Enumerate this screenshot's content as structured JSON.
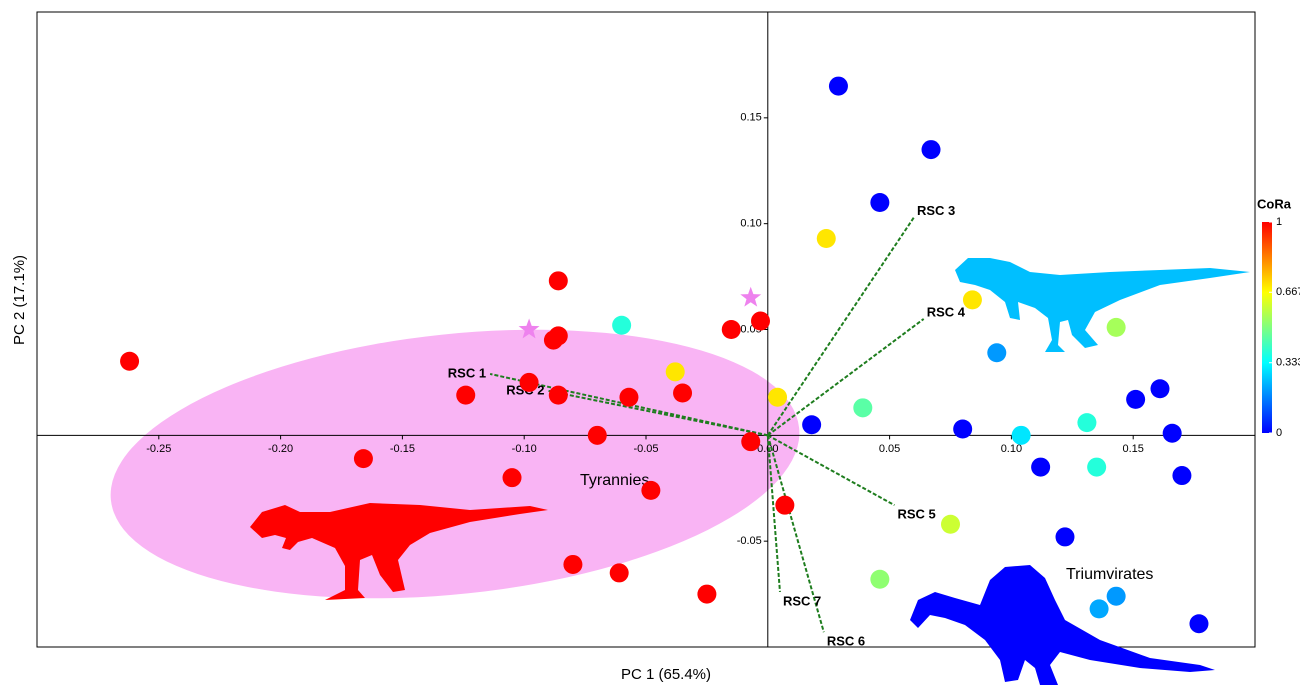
{
  "chart_data": {
    "type": "scatter",
    "x_label": "PC 1 (65.4%)",
    "y_label": "PC 2 (17.1%)",
    "xlim": [
      -0.3,
      0.2
    ],
    "ylim": [
      -0.1,
      0.2
    ],
    "xticks": [
      -0.25,
      {
        "value": -0.2,
        "label": "-0.20"
      },
      -0.15,
      {
        "value": -0.1,
        "label": "-0.10"
      },
      -0.05,
      {
        "value": 0,
        "label": "0.00"
      },
      0.05,
      {
        "value": 0.1,
        "label": "0.10"
      },
      0.15
    ],
    "yticks": [
      -0.05,
      0.05,
      {
        "value": 0.1,
        "label": "0.10"
      },
      0.15
    ],
    "points": {
      "x": [
        -0.262,
        -0.166,
        -0.124,
        -0.105,
        -0.098,
        -0.086,
        -0.086,
        -0.088,
        -0.086,
        -0.07,
        -0.057,
        -0.048,
        -0.035,
        -0.08,
        -0.061,
        -0.025,
        -0.015,
        -0.003,
        -0.007,
        0.007,
        -0.038,
        0.004,
        0.024,
        0.084,
        0.075,
        -0.06,
        0.131,
        0.135,
        0.039,
        0.143,
        0.046,
        0.094,
        0.104,
        0.136,
        0.143,
        0.029,
        0.067,
        0.046,
        0.018,
        0.08,
        0.112,
        0.122,
        0.151,
        0.161,
        0.166,
        0.17,
        0.177
      ],
      "y": [
        0.035,
        -0.011,
        0.019,
        -0.02,
        0.025,
        0.073,
        0.047,
        0.045,
        0.019,
        0.0,
        0.018,
        -0.026,
        0.02,
        -0.061,
        -0.065,
        -0.075,
        0.05,
        0.054,
        -0.003,
        -0.033,
        0.03,
        0.018,
        0.093,
        0.064,
        -0.042,
        0.052,
        0.006,
        -0.015,
        0.013,
        0.051,
        -0.068,
        0.039,
        0.0,
        -0.082,
        -0.076,
        0.165,
        0.135,
        0.11,
        0.005,
        0.003,
        -0.015,
        -0.048,
        0.017,
        0.022,
        0.001,
        -0.019,
        -0.089
      ],
      "color_values": [
        1,
        1,
        1,
        1,
        1,
        1,
        1,
        1,
        1,
        1,
        1,
        1,
        1,
        1,
        1,
        1,
        1,
        1,
        1,
        1,
        0.7,
        0.7,
        0.7,
        0.7,
        0.6,
        0.38,
        0.38,
        0.38,
        0.45,
        0.55,
        0.52,
        0.2,
        0.3,
        0.22,
        0.2,
        0,
        0,
        0,
        0,
        0,
        0,
        0,
        0,
        0,
        0,
        0,
        0
      ]
    },
    "stars": {
      "x": [
        -0.098,
        -0.007
      ],
      "y": [
        0.05,
        0.065
      ],
      "color": "#ee82ee"
    },
    "loadings": [
      {
        "label": "RSC 1",
        "x": -0.114,
        "y": 0.029
      },
      {
        "label": "RSC 2",
        "x": -0.09,
        "y": 0.021
      },
      {
        "label": "RSC 3",
        "x": 0.06,
        "y": 0.103
      },
      {
        "label": "RSC 4",
        "x": 0.064,
        "y": 0.055
      },
      {
        "label": "RSC 5",
        "x": 0.052,
        "y": -0.033
      },
      {
        "label": "RSC 6",
        "x": 0.023,
        "y": -0.093
      },
      {
        "label": "RSC 7",
        "x": 0.005,
        "y": -0.074
      }
    ],
    "loading_color": "#1e7d1e",
    "colorbar_title": "CoRa",
    "colorscale": [
      {
        "value": 0,
        "color": "#0000ff"
      },
      {
        "value": 0.333,
        "color": "#00ffff"
      },
      {
        "value": 0.5,
        "color": "#80ff80"
      },
      {
        "value": 0.667,
        "color": "#ffff00"
      },
      {
        "value": 1,
        "color": "#ff0000"
      }
    ],
    "cbar_ticks": [
      0,
      0.333,
      0.667,
      1
    ],
    "group_labels": [
      "Tyrannies",
      "Triumvirates"
    ]
  }
}
